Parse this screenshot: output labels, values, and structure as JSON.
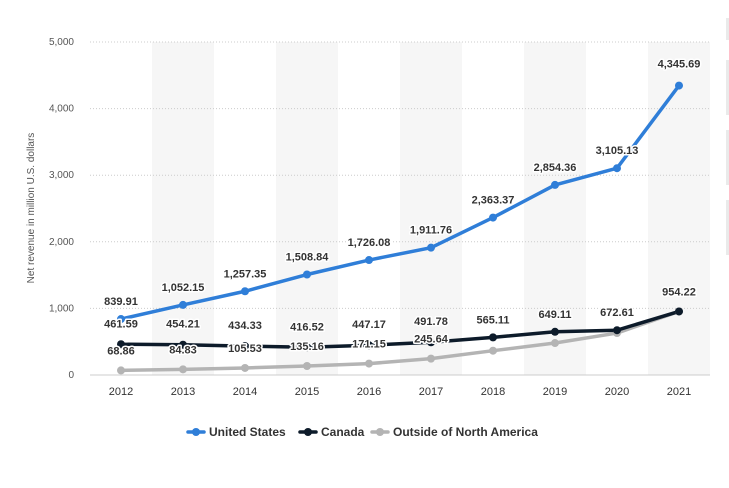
{
  "chart_data": {
    "type": "line",
    "title": "",
    "xlabel": "",
    "ylabel": "Net revenue in million U.S. dollars",
    "categories": [
      "2012",
      "2013",
      "2014",
      "2015",
      "2016",
      "2017",
      "2018",
      "2019",
      "2020",
      "2021"
    ],
    "ylim": [
      0,
      5000
    ],
    "yticks": [
      0,
      1000,
      2000,
      3000,
      4000,
      5000
    ],
    "ytick_labels": [
      "0",
      "1,000",
      "2,000",
      "3,000",
      "4,000",
      "5,000"
    ],
    "grid": true,
    "legend_position": "bottom",
    "series": [
      {
        "name": "United States",
        "color": "#2f7ed8",
        "values": [
          839.91,
          1052.15,
          1257.35,
          1508.84,
          1726.08,
          1911.76,
          2363.37,
          2854.36,
          3105.13,
          4345.69
        ],
        "labels": [
          "839.91",
          "1,052.15",
          "1,257.35",
          "1,508.84",
          "1,726.08",
          "1,911.76",
          "2,363.37",
          "2,854.36",
          "3,105.13",
          "4,345.69"
        ]
      },
      {
        "name": "Canada",
        "color": "#0d1b2a",
        "values": [
          461.59,
          454.21,
          434.33,
          416.52,
          447.17,
          491.78,
          565.11,
          649.11,
          672.61,
          954.22
        ],
        "labels": [
          "461.59",
          "454.21",
          "434.33",
          "416.52",
          "447.17",
          "491.78",
          "565.11",
          "649.11",
          "672.61",
          "954.22"
        ]
      },
      {
        "name": "Outside of North America",
        "color": "#b4b4b4",
        "values": [
          68.86,
          84.83,
          105.53,
          135.16,
          171.15,
          245.64,
          365,
          480,
          630,
          954.22
        ],
        "labels": [
          "68.86",
          "84.83",
          "105.53",
          "135.16",
          "171.15",
          "245.64",
          "",
          "",
          "",
          ""
        ]
      }
    ]
  }
}
